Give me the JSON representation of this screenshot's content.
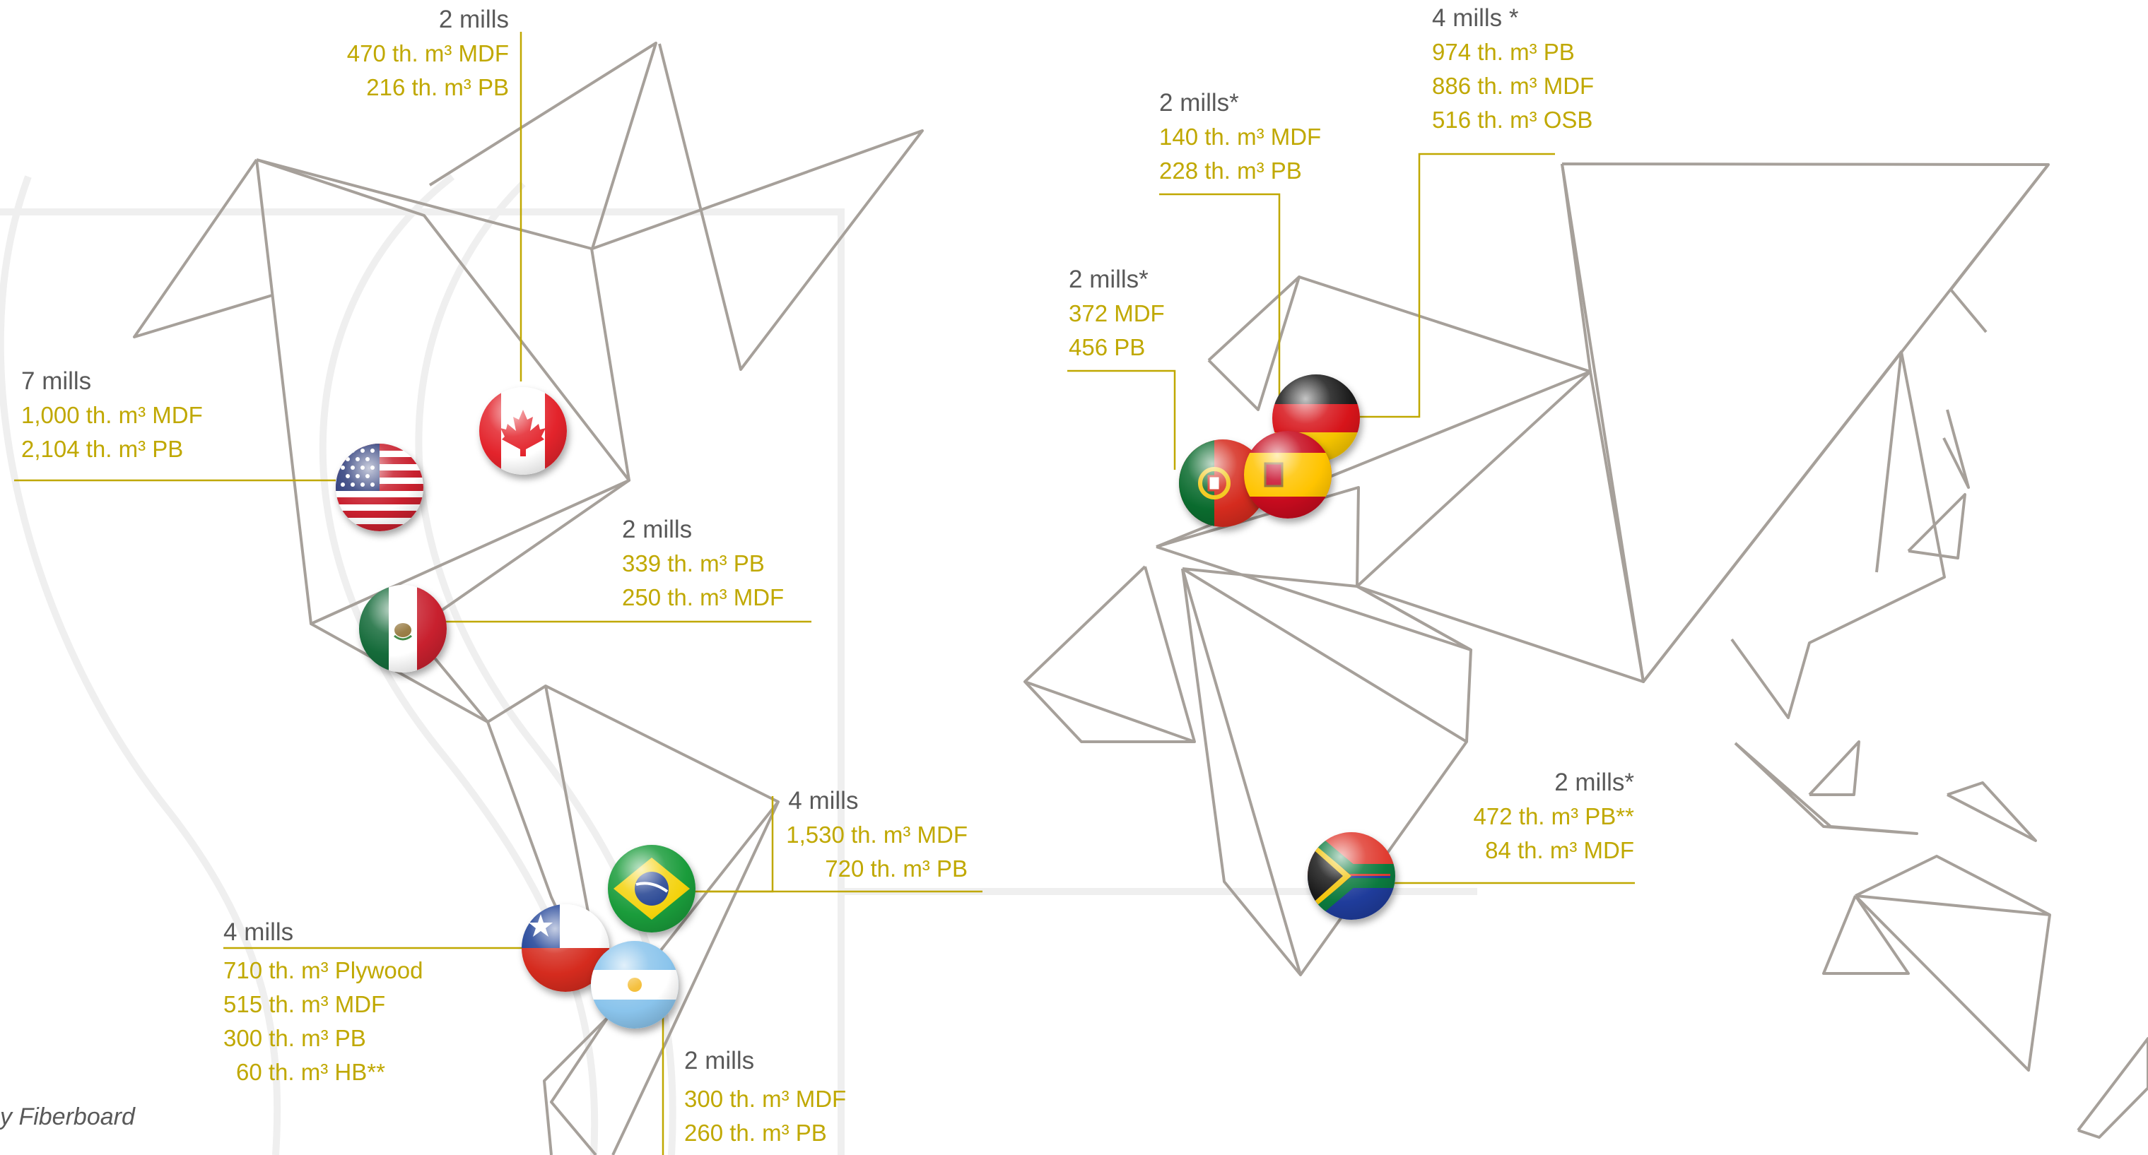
{
  "footnote": "y Fiberboard",
  "colors": {
    "line": "#a6a09a",
    "accent": "#C0A800",
    "text": "#595959"
  },
  "regions": {
    "canada": {
      "mills": "2 mills",
      "lines": [
        "470 th. m³ MDF",
        "216 th. m³     PB"
      ],
      "flag": "canada-flag"
    },
    "usa": {
      "mills": "7 mills",
      "lines": [
        "1,000 th. m³  MDF",
        "2,104 th. m³ PB"
      ],
      "flag": "usa-flag"
    },
    "mexico": {
      "mills": "2 mills",
      "lines": [
        "339 th. m³ PB",
        "250 th. m³ MDF"
      ],
      "flag": "mexico-flag"
    },
    "brazil": {
      "mills": "4 mills",
      "lines": [
        "1,530 th. m³ MDF",
        "720 th. m³ PB"
      ],
      "flag": "brazil-flag"
    },
    "chile": {
      "mills": "4 mills",
      "lines": [
        "710 th. m³ Plywood",
        "515 th. m³ MDF",
        "300 th. m³ PB",
        "60 th. m³ HB**"
      ],
      "flag": "chile-flag"
    },
    "argentina": {
      "mills": "2 mills",
      "lines": [
        "300 th. m³ MDF",
        "260 th. m³ PB"
      ],
      "flag": "argentina-flag"
    },
    "germany": {
      "mills": "4 mills *",
      "lines": [
        "974 th. m³ PB",
        "886 th. m³ MDF",
        "516 th. m³ OSB"
      ],
      "flag": "germany-flag"
    },
    "spain": {
      "mills": "2 mills*",
      "lines": [
        "140 th. m³ MDF",
        "228 th. m³ PB"
      ],
      "flag": "spain-flag"
    },
    "portugal": {
      "mills": "2 mills*",
      "lines": [
        "372 MDF",
        "456 PB"
      ],
      "flag": "portugal-flag"
    },
    "south_africa": {
      "mills": "2 mills*",
      "lines": [
        "472 th. m³ PB**",
        "84 th. m³ MDF"
      ],
      "flag": "south-africa-flag"
    }
  }
}
